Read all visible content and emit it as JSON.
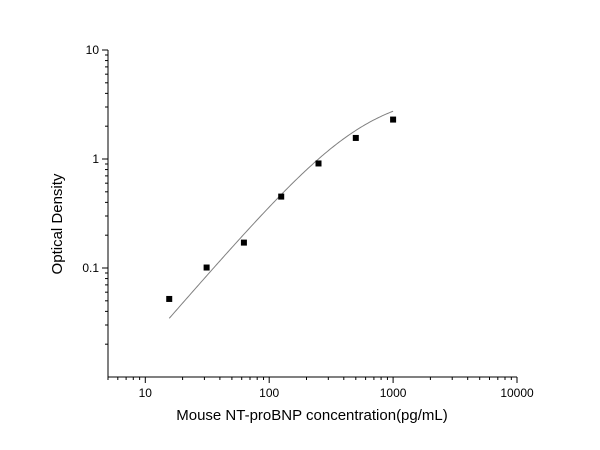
{
  "chart_data": {
    "type": "scatter",
    "xscale": "log",
    "yscale": "log",
    "xlim": [
      5,
      10000
    ],
    "ylim": [
      0.01,
      10
    ],
    "xlabel": "Mouse NT-proBNP concentration(pg/mL)",
    "ylabel": "Optical Density",
    "xticks": [
      10,
      100,
      1000,
      10000
    ],
    "xtick_labels": [
      "10",
      "100",
      "1000",
      "10000"
    ],
    "yticks": [
      0.1,
      1,
      10
    ],
    "ytick_labels": [
      "0.1",
      "1",
      "10"
    ],
    "grid": false,
    "series": [
      {
        "marker": "square",
        "color": "#000000",
        "points": [
          {
            "x": 15.6,
            "y": 0.052
          },
          {
            "x": 31.25,
            "y": 0.101
          },
          {
            "x": 62.5,
            "y": 0.171
          },
          {
            "x": 125,
            "y": 0.452
          },
          {
            "x": 250,
            "y": 0.91
          },
          {
            "x": 500,
            "y": 1.56
          },
          {
            "x": 1000,
            "y": 2.3
          }
        ]
      }
    ],
    "fit_curve": {
      "type": "4PL",
      "color": "#808080",
      "x_range": [
        15.6,
        1000
      ],
      "params": {
        "A": 0.0,
        "B": 1.31,
        "C": 600,
        "D": 4.15
      }
    }
  }
}
